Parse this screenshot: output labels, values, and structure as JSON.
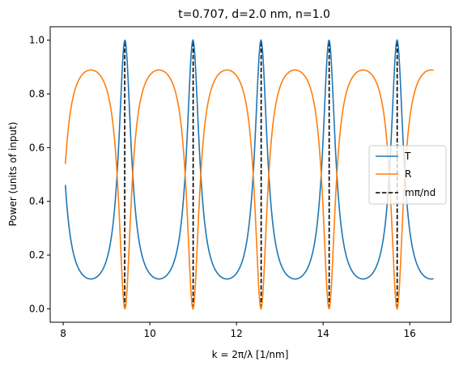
{
  "chart_data": {
    "type": "line",
    "title": "t=0.707, d=2.0 nm, n=1.0",
    "xlabel": "k = 2π/λ [1/nm]",
    "ylabel": "Power (units of input)",
    "xlim": [
      7.7,
      16.95
    ],
    "ylim": [
      -0.05,
      1.05
    ],
    "xticks": [
      8,
      10,
      12,
      14,
      16
    ],
    "yticks": [
      0.0,
      0.2,
      0.4,
      0.6,
      0.8,
      1.0
    ],
    "xtick_labels": [
      "8",
      "10",
      "12",
      "14",
      "16"
    ],
    "ytick_labels": [
      "0.0",
      "0.2",
      "0.4",
      "0.6",
      "0.8",
      "1.0"
    ],
    "grid": false,
    "legend_position": "center-right",
    "x_range": [
      8.05,
      16.55
    ],
    "curve_params": {
      "t": 0.707,
      "d": 2.0,
      "n": 1.0
    },
    "series": [
      {
        "name": "T",
        "color": "#1f77b4",
        "style": "solid"
      },
      {
        "name": "R",
        "color": "#ff7f0e",
        "style": "solid"
      }
    ],
    "vlines": {
      "name": "mπ/nd",
      "color": "#000000",
      "style": "dashed",
      "x": [
        9.42,
        11.0,
        12.57,
        14.14,
        15.71
      ],
      "y_range": [
        0,
        1
      ]
    }
  }
}
